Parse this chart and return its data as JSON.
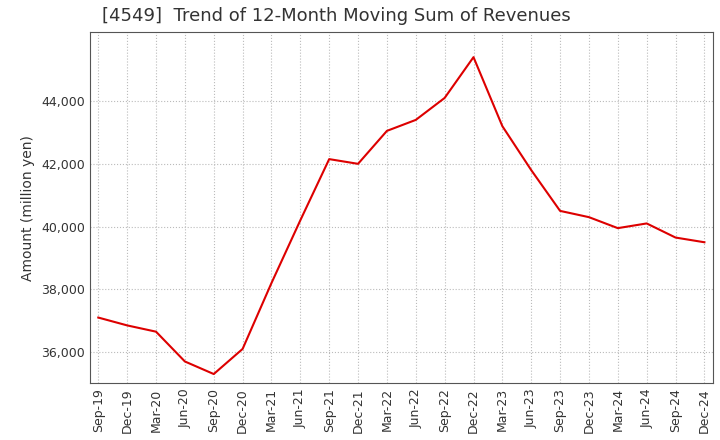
{
  "title": "[4549]  Trend of 12-Month Moving Sum of Revenues",
  "ylabel": "Amount (million yen)",
  "background_color": "#ffffff",
  "grid_color": "#bbbbbb",
  "line_color": "#dd0000",
  "x_labels": [
    "Sep-19",
    "Dec-19",
    "Mar-20",
    "Jun-20",
    "Sep-20",
    "Dec-20",
    "Mar-21",
    "Jun-21",
    "Sep-21",
    "Dec-21",
    "Mar-22",
    "Jun-22",
    "Sep-22",
    "Dec-22",
    "Mar-23",
    "Jun-23",
    "Sep-23",
    "Dec-23",
    "Mar-24",
    "Jun-24",
    "Sep-24",
    "Dec-24"
  ],
  "values": [
    37100,
    36850,
    36650,
    35700,
    35300,
    36100,
    38200,
    40200,
    42150,
    42000,
    43050,
    43400,
    44100,
    45400,
    43200,
    41800,
    40500,
    40300,
    39950,
    40100,
    39650,
    39500
  ],
  "ylim": [
    35000,
    46200
  ],
  "yticks": [
    36000,
    38000,
    40000,
    42000,
    44000
  ],
  "title_fontsize": 13,
  "axis_fontsize": 10,
  "tick_fontsize": 9
}
